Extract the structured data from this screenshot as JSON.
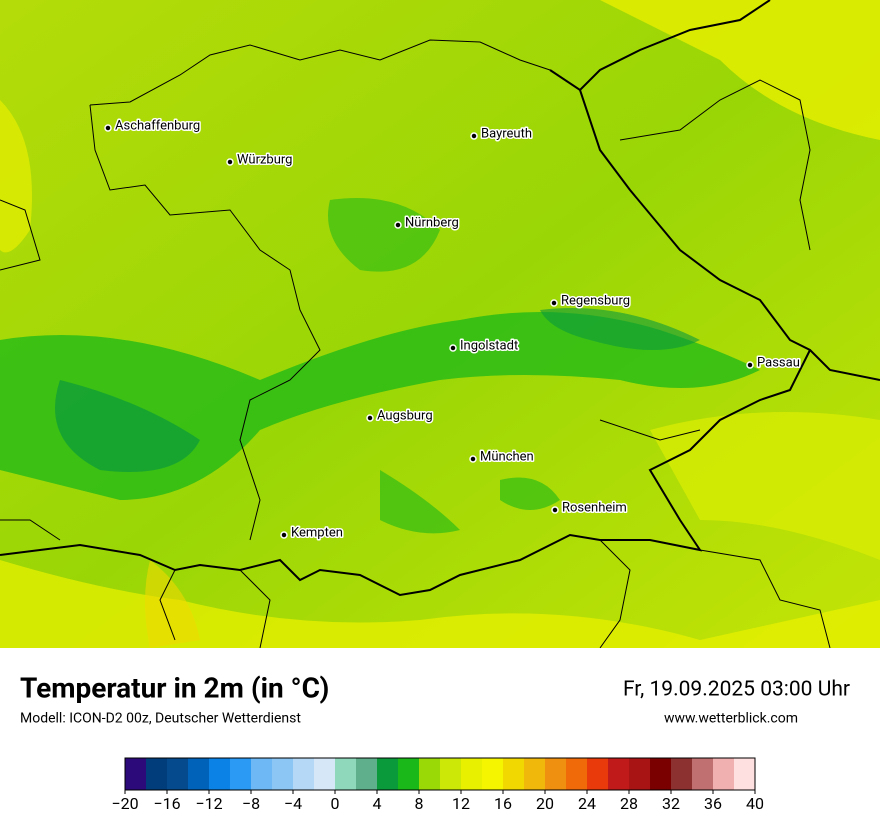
{
  "map": {
    "cities": [
      "Aschaffenburg",
      "Würzburg",
      "Bayreuth",
      "Nürnberg",
      "Regensburg",
      "Ingolstadt",
      "Passau",
      "Augsburg",
      "München",
      "Rosenheim",
      "Kempten"
    ]
  },
  "footer": {
    "title": "Temperatur in 2m (in °C)",
    "subtitle": "Modell: ICON-D2 00z, Deutscher Wetterdienst",
    "date": "Fr, 19.09.2025 03:00 Uhr",
    "website": "www.wetterblick.com"
  },
  "colorbar": {
    "colors": [
      "#2d0a7a",
      "#003d7a",
      "#054a8c",
      "#0062b8",
      "#0a82e6",
      "#2a9af5",
      "#6eb8f5",
      "#8cc6f5",
      "#b4d8f5",
      "#d6e8f8",
      "#8fd8bc",
      "#5fae8c",
      "#0a9a3c",
      "#1ab818",
      "#9ad806",
      "#cbe806",
      "#e8f000",
      "#f5f500",
      "#f0d800",
      "#f0b80a",
      "#f09010",
      "#f06a0a",
      "#e83a0a",
      "#c01a1a",
      "#a81414",
      "#7a0000",
      "#8c3030",
      "#c07070",
      "#f0b0b0",
      "#ffe0e0"
    ],
    "ticks": [
      {
        "value": -20,
        "label": "−20"
      },
      {
        "value": -16,
        "label": "−16"
      },
      {
        "value": -12,
        "label": "−12"
      },
      {
        "value": -8,
        "label": "−8"
      },
      {
        "value": -4,
        "label": "−4"
      },
      0,
      4,
      8,
      12,
      16,
      20,
      24,
      28,
      32,
      36,
      40
    ]
  }
}
